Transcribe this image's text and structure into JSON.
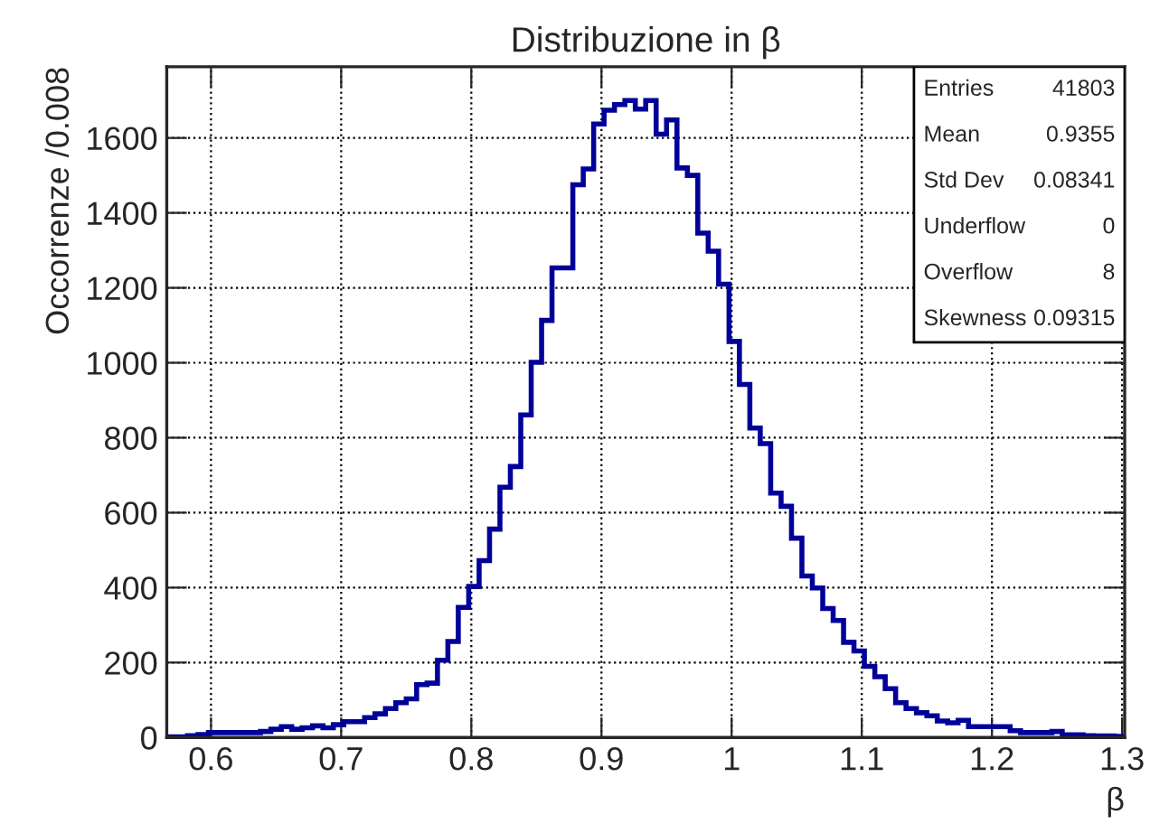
{
  "chart_data": {
    "type": "histogram",
    "title": "Distribuzione in β",
    "xlabel": "β",
    "ylabel": "Occorrenze /0.008",
    "bins": [
      0.566,
      0.574,
      0.582,
      0.59,
      0.598,
      0.606,
      0.614,
      0.622,
      0.63,
      0.638,
      0.646,
      0.654,
      0.662,
      0.67,
      0.678,
      0.686,
      0.694,
      0.702,
      0.71,
      0.718,
      0.726,
      0.734,
      0.742,
      0.75,
      0.758,
      0.766,
      0.774,
      0.782,
      0.79,
      0.798,
      0.806,
      0.814,
      0.822,
      0.83,
      0.838,
      0.846,
      0.854,
      0.862,
      0.87,
      0.878,
      0.886,
      0.894,
      0.902,
      0.91,
      0.918,
      0.926,
      0.934,
      0.942,
      0.95,
      0.958,
      0.966,
      0.974,
      0.982,
      0.99,
      0.998,
      1.006,
      1.014,
      1.022,
      1.03,
      1.038,
      1.046,
      1.054,
      1.062,
      1.07,
      1.078,
      1.086,
      1.094,
      1.102,
      1.11,
      1.118,
      1.126,
      1.134,
      1.142,
      1.15,
      1.158,
      1.166,
      1.174,
      1.182,
      1.19,
      1.198,
      1.206,
      1.214,
      1.222,
      1.23,
      1.238,
      1.246,
      1.254,
      1.262,
      1.27,
      1.278,
      1.286,
      1.294,
      1.302
    ],
    "values": [
      2,
      2,
      5,
      8,
      13,
      13,
      13,
      13,
      13,
      16,
      22,
      29,
      22,
      26,
      31,
      26,
      34,
      42,
      42,
      53,
      63,
      77,
      93,
      103,
      141,
      145,
      206,
      256,
      347,
      403,
      472,
      556,
      668,
      723,
      861,
      1001,
      1113,
      1253,
      1253,
      1475,
      1517,
      1637,
      1674,
      1689,
      1700,
      1677,
      1700,
      1610,
      1648,
      1520,
      1500,
      1346,
      1298,
      1210,
      1057,
      942,
      826,
      784,
      652,
      617,
      532,
      431,
      399,
      344,
      312,
      254,
      231,
      190,
      162,
      130,
      93,
      77,
      66,
      58,
      44,
      39,
      46,
      29,
      29,
      29,
      29,
      18,
      13,
      13,
      13,
      16,
      7,
      7,
      5,
      4,
      4,
      3
    ],
    "color": "#000099",
    "xlim": [
      0.566,
      1.302
    ],
    "xticks": [
      0.6,
      0.7,
      0.8,
      0.9,
      1,
      1.1,
      1.2,
      1.3
    ],
    "ylim": [
      0,
      1790
    ],
    "yticks": [
      0,
      200,
      400,
      600,
      800,
      1000,
      1200,
      1400,
      1600
    ],
    "grid": true,
    "annotations": [
      "Entries 41803",
      "Mean 0.9355",
      "Std Dev 0.08341",
      "Underflow 0",
      "Overflow 8",
      "Skewness 0.09315"
    ]
  }
}
